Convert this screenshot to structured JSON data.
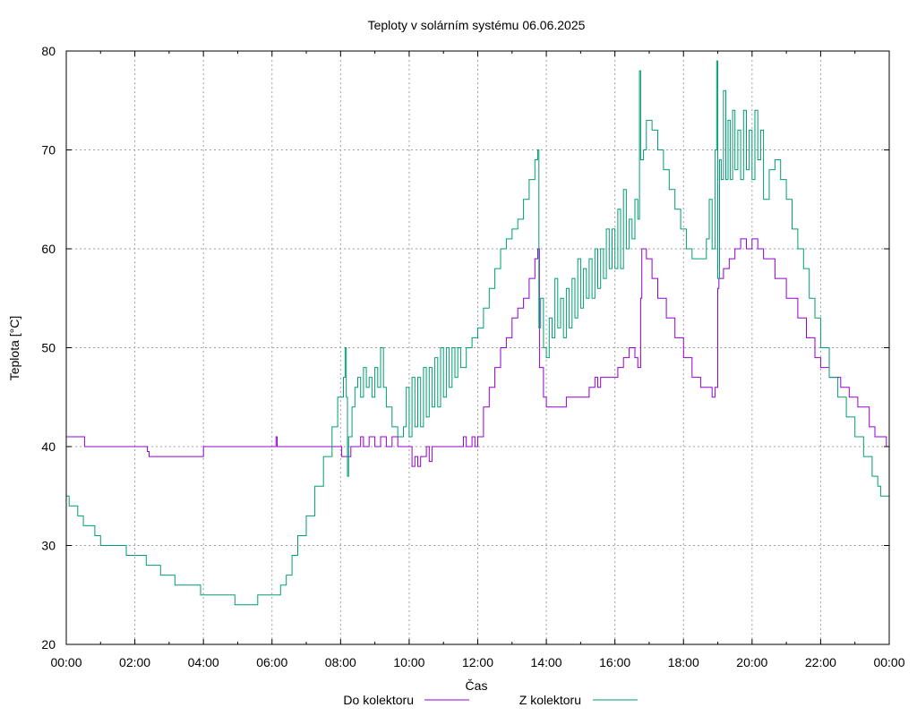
{
  "chart_data": {
    "type": "line",
    "title": "Teploty v solárním systému 06.06.2025",
    "xlabel": "Čas",
    "ylabel": "Teplota [°C]",
    "xlim": [
      "00:00",
      "24:00"
    ],
    "ylim": [
      20,
      80
    ],
    "x_ticks": [
      "00:00",
      "02:00",
      "04:00",
      "06:00",
      "08:00",
      "10:00",
      "12:00",
      "14:00",
      "16:00",
      "18:00",
      "20:00",
      "22:00",
      "00:00"
    ],
    "y_ticks": [
      "20",
      "30",
      "40",
      "50",
      "60",
      "70",
      "80"
    ],
    "grid": true,
    "legend_position": "bottom-center",
    "series": [
      {
        "name": "Do kolektoru",
        "color": "#9400d3",
        "points": [
          [
            "00:00",
            41
          ],
          [
            "00:30",
            41
          ],
          [
            "00:32",
            40
          ],
          [
            "02:20",
            40
          ],
          [
            "02:22",
            39.5
          ],
          [
            "02:25",
            39
          ],
          [
            "03:58",
            39
          ],
          [
            "04:00",
            40
          ],
          [
            "06:05",
            40
          ],
          [
            "06:07",
            41
          ],
          [
            "06:09",
            40
          ],
          [
            "08:00",
            40
          ],
          [
            "08:02",
            39
          ],
          [
            "08:15",
            39
          ],
          [
            "08:18",
            40
          ],
          [
            "08:30",
            40
          ],
          [
            "08:35",
            41
          ],
          [
            "08:40",
            40
          ],
          [
            "08:50",
            41
          ],
          [
            "09:00",
            40
          ],
          [
            "09:10",
            41
          ],
          [
            "09:20",
            40
          ],
          [
            "09:30",
            41
          ],
          [
            "09:40",
            40
          ],
          [
            "10:00",
            40
          ],
          [
            "10:05",
            38
          ],
          [
            "10:10",
            39
          ],
          [
            "10:15",
            38
          ],
          [
            "10:20",
            39
          ],
          [
            "10:30",
            40
          ],
          [
            "10:35",
            38.5
          ],
          [
            "10:40",
            40
          ],
          [
            "11:30",
            40
          ],
          [
            "11:35",
            41
          ],
          [
            "11:40",
            40
          ],
          [
            "11:50",
            41
          ],
          [
            "11:55",
            40
          ],
          [
            "12:00",
            41
          ],
          [
            "12:10",
            44
          ],
          [
            "12:20",
            46
          ],
          [
            "12:30",
            48
          ],
          [
            "12:40",
            50
          ],
          [
            "12:50",
            51
          ],
          [
            "13:00",
            53
          ],
          [
            "13:10",
            54
          ],
          [
            "13:20",
            55
          ],
          [
            "13:30",
            57
          ],
          [
            "13:40",
            59
          ],
          [
            "13:45",
            60
          ],
          [
            "13:48",
            48
          ],
          [
            "13:55",
            45
          ],
          [
            "14:00",
            44
          ],
          [
            "14:30",
            44
          ],
          [
            "14:35",
            45
          ],
          [
            "15:10",
            45
          ],
          [
            "15:15",
            46
          ],
          [
            "15:25",
            47
          ],
          [
            "15:30",
            46
          ],
          [
            "15:35",
            47
          ],
          [
            "16:00",
            47
          ],
          [
            "16:05",
            48
          ],
          [
            "16:15",
            49
          ],
          [
            "16:25",
            50
          ],
          [
            "16:35",
            49
          ],
          [
            "16:40",
            48
          ],
          [
            "16:45",
            55
          ],
          [
            "16:47",
            60
          ],
          [
            "16:55",
            59
          ],
          [
            "17:05",
            57
          ],
          [
            "17:15",
            55
          ],
          [
            "17:30",
            53
          ],
          [
            "17:45",
            51
          ],
          [
            "18:00",
            49
          ],
          [
            "18:15",
            47
          ],
          [
            "18:30",
            46
          ],
          [
            "18:45",
            46
          ],
          [
            "18:50",
            45
          ],
          [
            "18:55",
            46
          ],
          [
            "19:00",
            56
          ],
          [
            "19:02",
            57
          ],
          [
            "19:10",
            58
          ],
          [
            "19:20",
            59
          ],
          [
            "19:30",
            60
          ],
          [
            "19:40",
            61
          ],
          [
            "19:50",
            60
          ],
          [
            "20:00",
            61
          ],
          [
            "20:10",
            60
          ],
          [
            "20:20",
            59
          ],
          [
            "20:40",
            57
          ],
          [
            "21:00",
            55
          ],
          [
            "21:20",
            53
          ],
          [
            "21:35",
            51
          ],
          [
            "21:50",
            49
          ],
          [
            "22:00",
            48
          ],
          [
            "22:15",
            47
          ],
          [
            "22:35",
            46
          ],
          [
            "22:50",
            45
          ],
          [
            "23:05",
            44
          ],
          [
            "23:25",
            42
          ],
          [
            "23:35",
            41
          ],
          [
            "23:50",
            41
          ],
          [
            "23:55",
            40
          ],
          [
            "24:00",
            40
          ]
        ]
      },
      {
        "name": "Z kolektoru",
        "color": "#009e73",
        "points": [
          [
            "00:00",
            35
          ],
          [
            "00:05",
            34
          ],
          [
            "00:20",
            33
          ],
          [
            "00:30",
            32
          ],
          [
            "00:50",
            31
          ],
          [
            "01:00",
            30
          ],
          [
            "01:40",
            30
          ],
          [
            "01:45",
            29
          ],
          [
            "02:15",
            29
          ],
          [
            "02:20",
            28
          ],
          [
            "02:40",
            28
          ],
          [
            "02:45",
            27
          ],
          [
            "03:05",
            27
          ],
          [
            "03:10",
            26
          ],
          [
            "03:50",
            26
          ],
          [
            "03:55",
            25
          ],
          [
            "04:50",
            25
          ],
          [
            "04:55",
            24
          ],
          [
            "05:30",
            24
          ],
          [
            "05:35",
            25
          ],
          [
            "06:00",
            25
          ],
          [
            "06:05",
            25
          ],
          [
            "06:15",
            26
          ],
          [
            "06:25",
            27
          ],
          [
            "06:35",
            29
          ],
          [
            "06:45",
            31
          ],
          [
            "07:00",
            33
          ],
          [
            "07:15",
            36
          ],
          [
            "07:30",
            39
          ],
          [
            "07:45",
            42
          ],
          [
            "07:55",
            45
          ],
          [
            "08:05",
            47
          ],
          [
            "08:08",
            50
          ],
          [
            "08:10",
            45
          ],
          [
            "08:12",
            37
          ],
          [
            "08:14",
            41
          ],
          [
            "08:20",
            44
          ],
          [
            "08:25",
            46
          ],
          [
            "08:30",
            47
          ],
          [
            "08:35",
            45
          ],
          [
            "08:40",
            48
          ],
          [
            "08:45",
            46
          ],
          [
            "08:50",
            47
          ],
          [
            "08:55",
            45
          ],
          [
            "09:00",
            48
          ],
          [
            "09:05",
            46
          ],
          [
            "09:10",
            50
          ],
          [
            "09:15",
            46
          ],
          [
            "09:20",
            44
          ],
          [
            "09:30",
            42
          ],
          [
            "09:40",
            41
          ],
          [
            "09:50",
            42
          ],
          [
            "09:55",
            46
          ],
          [
            "10:00",
            41
          ],
          [
            "10:05",
            47
          ],
          [
            "10:10",
            42
          ],
          [
            "10:15",
            47
          ],
          [
            "10:20",
            42
          ],
          [
            "10:25",
            48
          ],
          [
            "10:30",
            43
          ],
          [
            "10:35",
            48
          ],
          [
            "10:40",
            44
          ],
          [
            "10:45",
            49
          ],
          [
            "10:50",
            44
          ],
          [
            "10:55",
            50
          ],
          [
            "11:00",
            45
          ],
          [
            "11:05",
            50
          ],
          [
            "11:10",
            46
          ],
          [
            "11:15",
            50
          ],
          [
            "11:20",
            47
          ],
          [
            "11:25",
            50
          ],
          [
            "11:30",
            48
          ],
          [
            "11:40",
            50
          ],
          [
            "11:50",
            51
          ],
          [
            "12:00",
            52
          ],
          [
            "12:10",
            54
          ],
          [
            "12:20",
            56
          ],
          [
            "12:30",
            58
          ],
          [
            "12:40",
            60
          ],
          [
            "12:50",
            61
          ],
          [
            "13:00",
            62
          ],
          [
            "13:10",
            63
          ],
          [
            "13:20",
            65
          ],
          [
            "13:30",
            67
          ],
          [
            "13:40",
            69
          ],
          [
            "13:45",
            70
          ],
          [
            "13:47",
            52
          ],
          [
            "13:50",
            55
          ],
          [
            "13:55",
            50
          ],
          [
            "14:00",
            49
          ],
          [
            "14:05",
            53
          ],
          [
            "14:10",
            51
          ],
          [
            "14:15",
            57
          ],
          [
            "14:20",
            52
          ],
          [
            "14:25",
            55
          ],
          [
            "14:30",
            51
          ],
          [
            "14:35",
            56
          ],
          [
            "14:40",
            52
          ],
          [
            "14:45",
            57
          ],
          [
            "14:50",
            53
          ],
          [
            "14:55",
            59
          ],
          [
            "15:00",
            54
          ],
          [
            "15:05",
            58
          ],
          [
            "15:10",
            55
          ],
          [
            "15:15",
            59
          ],
          [
            "15:20",
            55
          ],
          [
            "15:25",
            60
          ],
          [
            "15:30",
            56
          ],
          [
            "15:35",
            60
          ],
          [
            "15:40",
            57
          ],
          [
            "15:45",
            62
          ],
          [
            "15:50",
            58
          ],
          [
            "15:55",
            62
          ],
          [
            "16:00",
            58
          ],
          [
            "16:05",
            64
          ],
          [
            "16:10",
            58
          ],
          [
            "16:15",
            66
          ],
          [
            "16:20",
            60
          ],
          [
            "16:25",
            63
          ],
          [
            "16:30",
            61
          ],
          [
            "16:35",
            65
          ],
          [
            "16:40",
            63
          ],
          [
            "16:43",
            78
          ],
          [
            "16:45",
            69
          ],
          [
            "16:50",
            70
          ],
          [
            "16:55",
            73
          ],
          [
            "17:05",
            72
          ],
          [
            "17:15",
            70
          ],
          [
            "17:25",
            68
          ],
          [
            "17:35",
            66
          ],
          [
            "17:45",
            64
          ],
          [
            "17:55",
            62
          ],
          [
            "18:05",
            60
          ],
          [
            "18:15",
            59
          ],
          [
            "18:30",
            59
          ],
          [
            "18:40",
            61
          ],
          [
            "18:45",
            65
          ],
          [
            "18:50",
            60
          ],
          [
            "18:55",
            70
          ],
          [
            "18:58",
            79
          ],
          [
            "19:00",
            57
          ],
          [
            "19:03",
            69
          ],
          [
            "19:06",
            67
          ],
          [
            "19:10",
            76
          ],
          [
            "19:14",
            67
          ],
          [
            "19:18",
            73
          ],
          [
            "19:22",
            67
          ],
          [
            "19:26",
            74
          ],
          [
            "19:30",
            68
          ],
          [
            "19:35",
            72
          ],
          [
            "19:40",
            67
          ],
          [
            "19:45",
            74
          ],
          [
            "19:50",
            68
          ],
          [
            "19:55",
            72
          ],
          [
            "20:00",
            67
          ],
          [
            "20:05",
            74
          ],
          [
            "20:10",
            69
          ],
          [
            "20:15",
            72
          ],
          [
            "20:20",
            65
          ],
          [
            "20:30",
            68
          ],
          [
            "20:40",
            69
          ],
          [
            "20:50",
            67
          ],
          [
            "21:00",
            65
          ],
          [
            "21:10",
            62
          ],
          [
            "21:20",
            60
          ],
          [
            "21:30",
            58
          ],
          [
            "21:40",
            55
          ],
          [
            "21:50",
            53
          ],
          [
            "22:00",
            50
          ],
          [
            "22:15",
            47
          ],
          [
            "22:30",
            45
          ],
          [
            "22:45",
            43
          ],
          [
            "23:00",
            41
          ],
          [
            "23:15",
            39
          ],
          [
            "23:30",
            37
          ],
          [
            "23:40",
            36
          ],
          [
            "23:45",
            35
          ],
          [
            "24:00",
            35
          ]
        ]
      }
    ]
  }
}
